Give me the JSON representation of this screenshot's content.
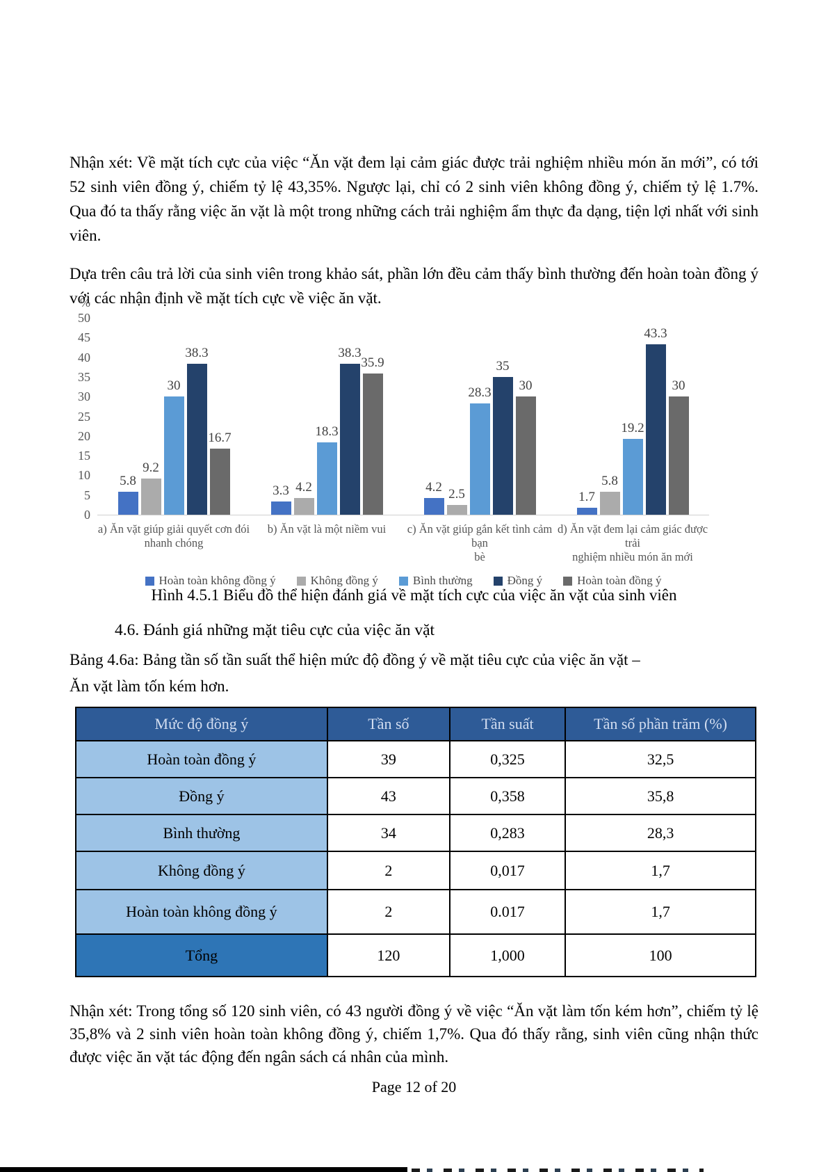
{
  "document": {
    "paragraph1": "Nhận xét: Về mặt tích cực của việc “Ăn vặt đem lại cảm giác được trải nghiệm nhiều món ăn mới”, có tới 52 sinh viên đồng ý, chiếm tỷ lệ 43,35%. Ngược lại, chỉ có 2 sinh viên không đồng ý, chiếm tỷ lệ 1.7%. Qua đó ta thấy rằng việc ăn vặt là một trong những cách trải nghiệm ẩm thực đa dạng, tiện lợi nhất với sinh viên.",
    "paragraph2": "Dựa trên câu trả lời của sinh viên trong khảo sát, phần lớn đều cảm thấy bình thường đến hoàn toàn đồng ý với các nhận định về mặt tích cực về việc ăn vặt.",
    "figure_caption": "Hình 4.5.1 Biểu đồ thể hiện đánh giá về mặt tích cực của việc ăn vặt của sinh viên",
    "section_heading": "4.6. Đánh giá những mặt tiêu cực của việc ăn vặt",
    "table_caption": "Bảng 4.6a: Bảng tần số tần suất thể hiện mức độ đồng ý về mặt tiêu cực của việc ăn vặt –\nĂn vặt làm tốn kém hơn.",
    "closing_paragraph": "Nhận xét: Trong tổng số 120 sinh viên, có 43 người đồng ý về việc “Ăn vặt làm tốn kém hơn”, chiếm tỷ lệ 35,8% và 2 sinh viên hoàn toàn không đồng ý, chiếm 1,7%. Qua đó thấy rằng, sinh viên cũng nhận thức được việc ăn vặt tác động đến ngân sách cá nhân của mình.",
    "page_number": "Page 12 of 20"
  },
  "chart_data": {
    "type": "bar",
    "title": "",
    "xlabel": "",
    "ylabel": "%",
    "ylim": [
      0,
      50
    ],
    "yticks": [
      0,
      5,
      10,
      15,
      20,
      25,
      30,
      35,
      40,
      45,
      50
    ],
    "grid": false,
    "data_labels": true,
    "legend_position": "bottom",
    "categories": [
      "a) Ăn vặt giúp giải quyết cơn đói\nnhanh chóng",
      "b) Ăn vặt là một niềm vui",
      "c) Ăn vặt giúp gắn kết tình cảm bạn\nbè",
      "d) Ăn vặt đem lại cảm giác được trải\nnghiệm nhiều món ăn mới"
    ],
    "series": [
      {
        "name": "Hoàn toàn không đồng ý",
        "color": "#4472C4",
        "values": [
          5.8,
          3.3,
          4.2,
          1.7
        ]
      },
      {
        "name": "Không đồng ý",
        "color": "#ABABAB",
        "values": [
          9.2,
          4.2,
          2.5,
          5.8
        ]
      },
      {
        "name": "Bình thường",
        "color": "#5B9BD5",
        "values": [
          30,
          18.3,
          28.3,
          19.2
        ]
      },
      {
        "name": "Đồng ý",
        "color": "#24426B",
        "values": [
          38.3,
          38.3,
          35,
          43.3
        ]
      },
      {
        "name": "Hoàn toàn đồng ý",
        "color": "#6A6A6A",
        "values": [
          16.7,
          35.9,
          30,
          30
        ]
      }
    ]
  },
  "table": {
    "headers": [
      "Mức độ đồng ý",
      "Tần số",
      "Tần suất",
      "Tần số phần trăm (%)"
    ],
    "rows": [
      [
        "Hoàn toàn đồng ý",
        "39",
        "0,325",
        "32,5"
      ],
      [
        "Đồng ý",
        "43",
        "0,358",
        "35,8"
      ],
      [
        "Bình thường",
        "34",
        "0,283",
        "28,3"
      ],
      [
        "Không đồng ý",
        "2",
        "0,017",
        "1,7"
      ],
      [
        "Hoàn toàn không đồng ý",
        "2",
        "0.017",
        "1,7"
      ]
    ],
    "total_row": [
      "Tổng",
      "120",
      "1,000",
      "100"
    ],
    "colors": {
      "header_bg": "#2E5B97",
      "header_text": "#D3DEF1",
      "label_bg": "#9DC3E6",
      "total_bg": "#2E75B6",
      "border": "#000000"
    }
  }
}
